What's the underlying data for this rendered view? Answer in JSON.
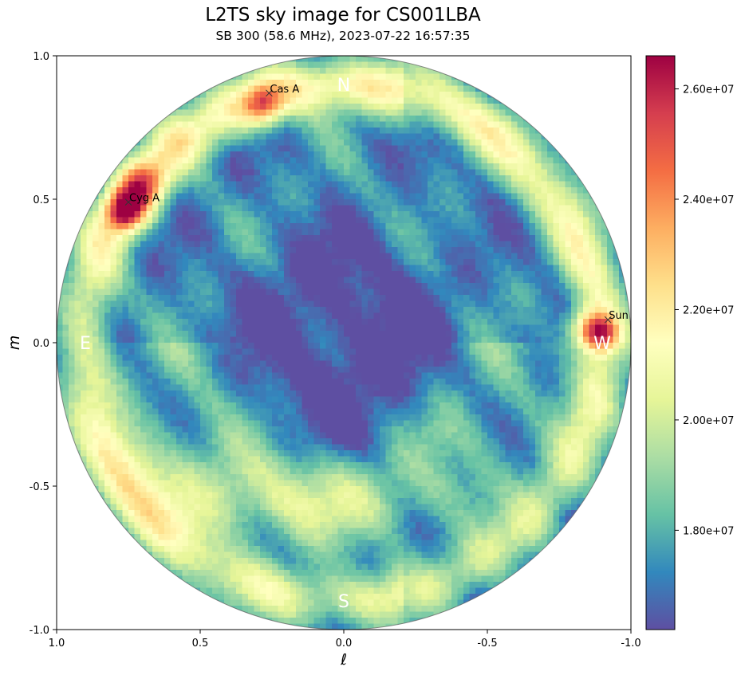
{
  "chart_data": {
    "type": "heatmap",
    "title": "L2TS sky image for CS001LBA",
    "subtitle": "SB 300 (58.6 MHz), 2023-07-22 16:57:35",
    "xlabel": "ℓ",
    "ylabel": "m",
    "xlim": [
      1.0,
      -1.0
    ],
    "ylim": [
      -1.0,
      1.0
    ],
    "x_ticks": [
      1.0,
      0.5,
      0.0,
      -0.5,
      -1.0
    ],
    "x_tick_labels": [
      "1.0",
      "0.5",
      "0.0",
      "-0.5",
      "-1.0"
    ],
    "y_ticks": [
      1.0,
      0.5,
      0.0,
      -0.5,
      -1.0
    ],
    "y_tick_labels": [
      "1.0",
      "0.5",
      "0.0",
      "-0.5",
      "-1.0"
    ],
    "colorbar": {
      "colormap": "Spectral_r",
      "min": 16200000,
      "max": 26600000,
      "ticks": [
        18000000,
        20000000,
        22000000,
        24000000,
        26000000
      ],
      "tick_labels": [
        "1.80e+07",
        "2.00e+07",
        "2.20e+07",
        "2.40e+07",
        "2.60e+07"
      ]
    },
    "compass": [
      {
        "label": "N",
        "l": 0.0,
        "m": 0.9
      },
      {
        "label": "E",
        "l": 0.9,
        "m": 0.0
      },
      {
        "label": "S",
        "l": 0.0,
        "m": -0.9
      },
      {
        "label": "W",
        "l": -0.9,
        "m": 0.0
      }
    ],
    "sources": [
      {
        "name": "Cas A",
        "l": 0.26,
        "m": 0.87
      },
      {
        "name": "Cyg A",
        "l": 0.75,
        "m": 0.49
      },
      {
        "name": "Sun",
        "l": -0.92,
        "m": 0.08
      }
    ],
    "intensity_features": [
      {
        "l": 0.76,
        "m": 0.46,
        "value": 26500000,
        "width": 0.05
      },
      {
        "l": 0.7,
        "m": 0.55,
        "value": 24500000,
        "width": 0.06
      },
      {
        "l": 0.28,
        "m": 0.83,
        "value": 24800000,
        "width": 0.05
      },
      {
        "l": -0.9,
        "m": 0.03,
        "value": 24800000,
        "width": 0.045
      },
      {
        "l": -0.85,
        "m": 0.05,
        "value": 23800000,
        "width": 0.05
      },
      {
        "l": 0.72,
        "m": -0.4,
        "value": 21500000,
        "width": 0.1
      },
      {
        "l": -0.33,
        "m": -0.3,
        "value": 20800000,
        "width": 0.07
      }
    ]
  }
}
